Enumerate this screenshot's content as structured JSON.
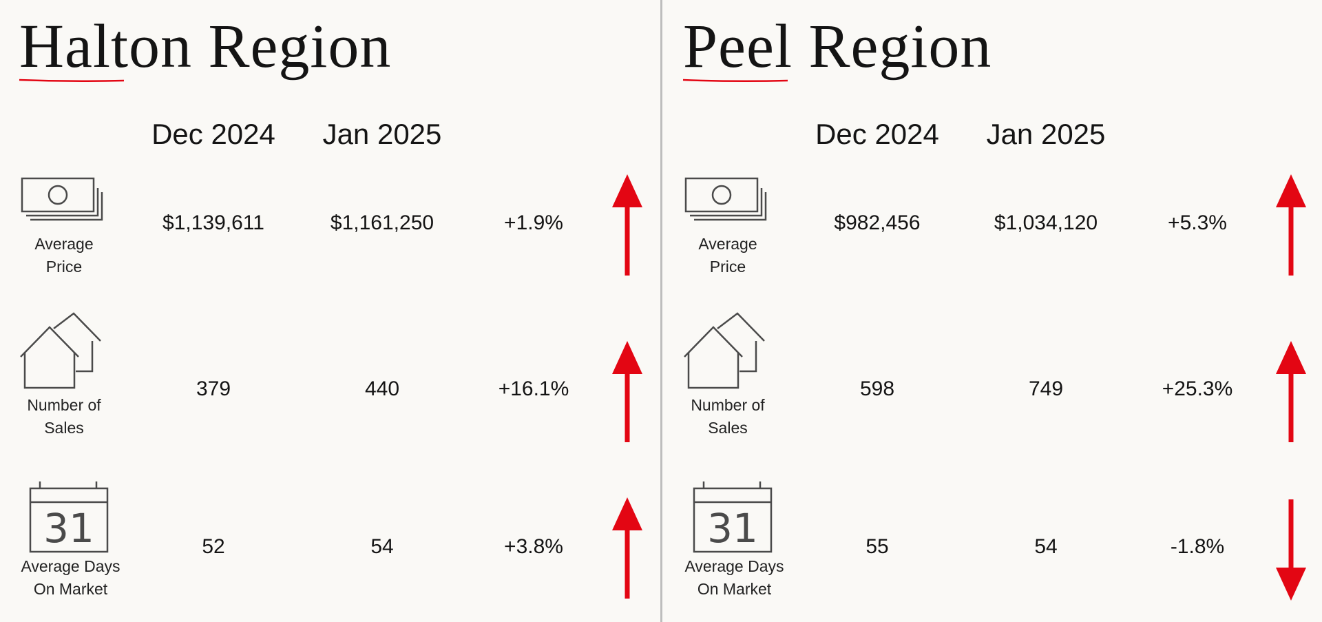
{
  "accent_color": "#e30613",
  "regions": [
    {
      "title": "Halton Region",
      "columns": {
        "dec": "Dec 2024",
        "jan": "Jan 2025"
      },
      "metrics": [
        {
          "icon": "money-stack-icon",
          "label": [
            "Average",
            "Price"
          ],
          "dec": "$1,139,611",
          "jan": "$1,161,250",
          "change": "+1.9%",
          "trend": "up"
        },
        {
          "icon": "houses-icon",
          "label": [
            "Number of",
            "Sales"
          ],
          "dec": "379",
          "jan": "440",
          "change": "+16.1%",
          "trend": "up"
        },
        {
          "icon": "calendar-31-icon",
          "label": [
            "Average Days",
            "On Market"
          ],
          "dec": "52",
          "jan": "54",
          "change": "+3.8%",
          "trend": "up"
        }
      ]
    },
    {
      "title": "Peel Region",
      "columns": {
        "dec": "Dec 2024",
        "jan": "Jan 2025"
      },
      "metrics": [
        {
          "icon": "money-stack-icon",
          "label": [
            "Average",
            "Price"
          ],
          "dec": "$982,456",
          "jan": "$1,034,120",
          "change": "+5.3%",
          "trend": "up"
        },
        {
          "icon": "houses-icon",
          "label": [
            "Number of",
            "Sales"
          ],
          "dec": "598",
          "jan": "749",
          "change": "+25.3%",
          "trend": "up"
        },
        {
          "icon": "calendar-31-icon",
          "label": [
            "Average Days",
            "On Market"
          ],
          "dec": "55",
          "jan": "54",
          "change": "-1.8%",
          "trend": "down"
        }
      ],
      "calendar_day": "31"
    }
  ],
  "calendar_day": "31"
}
